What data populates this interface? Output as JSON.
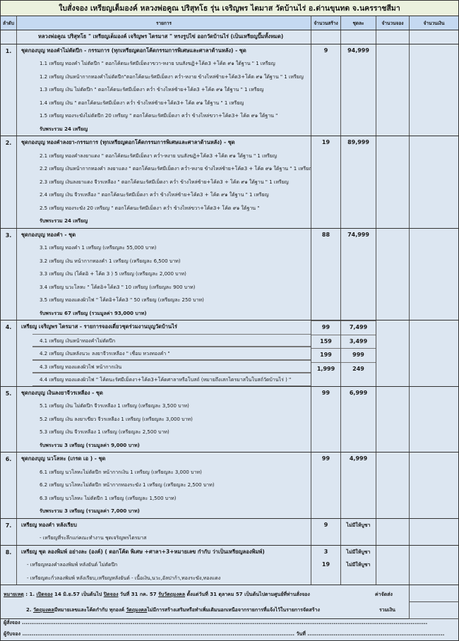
{
  "title": "ใบสั่งจอง เหรียญเต็มองค์ หลวงพ่อคูณ ปริสุทโธ รุ่น เจริญพร ไตมาส วัดบ้านไร่ อ.ด่านขุนทด จ.นครราชสีมา",
  "headers": [
    "ลำดับ",
    "รายการ",
    "จำนวนสร้าง",
    "ชุดละ",
    "จำนวนจอง",
    "จำนวนเงิน"
  ],
  "intro": "หลวงพ่อคูณ ปริสุทโธ \" เหรียญเต็มองค์ เจริญพร ไตรมาส \" ทรงรูปไข่ ออกวัดบ้านไร่ (เป็นเหรียญปั๊มทั้งหมด)",
  "sections": [
    {
      "num": "1.",
      "title": "ชุดกองบุญ ทองคำไม่ตัดปีก - กรรมการ (ทุกเหรียญตอกโค้ดกรรมการพิเศษและศาลาด้านหลัง) - ชุด",
      "qty": "9",
      "price": "94,999",
      "lines": [
        "1.1 เหรียญ ทองคำ ไม่ตัดปีก \" ตอกโค้ดนะรัศมีเม็ดงาขวา-หงาย บนสังฆฏิ+โค้ด3 +โค้ด ๙๑ ใต้ฐาน \" 1 เหรียญ",
        "1.2 เหรียญ เงินหน้ากากทองคำไม่ตัดปีก\"ตอกโค้ดนะรัศมีเม็ดงา คว่ำ-หงาย ข้างไหล่ซ้าย+โค้ด3+โค้ด ๙๑ ใต้ฐาน \" 1 เหรียญ",
        "1.3 เหรียญ เงิน ไม่ตัดปีก \" ตอกโค้ดนะรัศมีเม็ดงา คว่ำ ข้างไหล่ซ้าย+โค้ด3 +โค้ด ๙๑ ใต้ฐาน \" 1 เหรียญ",
        "1.4  เหรียญ เงิน  \" ตอกโค้ดนะรัศมีเม็ดงา คว่ำ ข้างไหล่ซ้าย+โค้ด3+ โค้ด ๙๑ ใต้ฐาน \" 1 เหรียญ",
        "1.5 เหรียญ ทองระฆังไม่ตัดปีก 20 เหรียญ  \" ตอกโค้ดนะรัศมีเม็ดงา คว่ำ ข้างไหล่ขวา+โค้ด3+ โค้ด ๙๑ ใต้ฐาน \""
      ],
      "total": "รับพระรวม 24 เหรียญ"
    },
    {
      "num": "2.",
      "title": "ชุดกองบุญ ทองคำลงยา-กรรมการ  (ทุกเหรียญตอกโค้ดกรรมการพิเศษและศาลาด้านหลัง) - ชุด",
      "qty": "19",
      "price": "89,999",
      "lines": [
        "2.1 เหรียญ ทองคำลงยาแดง \" ตอกโค้ดนะรัศมีเม็ดงา คว่ำ-หงาย บนสังฆฏิ+โค้ด3 +โค้ด ๙๑ ใต้ฐาน \" 1 เหรียญ",
        "2.2 เหรียญ เงินหน้ากากทองคำ ลงยาแดง \" ตอกโค้ดนะรัศมีเม็ดงา คว่ำ-หงาย ข้างไหล่ซ้าย+โค้ด3 + โค้ด ๙๑ ใต้ฐาน \" 1 เหรียญ",
        "2.3 เหรียญ เงินลงยาแดง จีวรเหลือง  \" ตอกโค้ดนะรัศมีเม็ดงา คว่ำ ข้างไหล่ซ้าย+โค้ด3 + โค้ด ๙๑ ใต้ฐาน \" 1 เหรียญ",
        "2.4  เหรียญ เงิน จีวรเหลือง  \" ตอกโค้ดนะรัศมีเม็ดงา คว่ำ ข้างไหล่ซ้าย+โค้ด3 + โค้ด ๙๑ ใต้ฐาน \" 1 เหรียญ",
        "2.5 เหรียญ ทองระฆัง 20 เหรียญ  \" ตอกโค้ดนะรัศมีเม็ดงา คว่ำ ข้างไหล่ขวา+โค้ด3+ โค้ด ๙๑ ใต้ฐาน \""
      ],
      "total": "รับพระรวม 24 เหรียญ"
    },
    {
      "num": "3.",
      "title": "ชุดกองบุญ ทองคำ - ชุด",
      "qty": "88",
      "price": "74,999",
      "lines": [
        "3.1 เหรียญ ทองคำ 1 เหรียญ (เหรียญละ 55,000 บาท)",
        "3.2 เหรียญ เงิน หน้ากากทองคำ 1 เหรียญ (เหรียญละ 6,500 บาท)",
        "3.3 เหรียญ เงิน (โค้ดอิ + โค้ด 3 )  5 เหรียญ (เหรียญละ 2,000 บาท)",
        "3.4 เหรียญ นวะโลหะ \" โค้ดอิ+โค้ด3 \" 10 เหรียญ (เหรียญละ 900 บาท)",
        "3.5 เหรียญ ทองแดงผิวไฟ \" โค้ดอิ+โค้ด3 \" 50 เหรียญ (เหรียญละ 250 บาท)"
      ],
      "total": "รับพระรวม 67 เหรียญ (รวมมูลค่า 93,000 บาท)"
    },
    {
      "num": "4.",
      "title": "เหรียญ เจริญพร ไตรมาส - รายการจองเดี่ยวชุดร่วมงานบุญวัดบ้านไร่",
      "qty": "",
      "price": "",
      "items": [
        {
          "text": "4.1 เหรียญ เงินหน้าทองคำไม่ตัดปีก",
          "qty": "99",
          "price": "7,499"
        },
        {
          "text": "4.2 เหรียญ  เงินหลังนวะ ลงยาจีวรเหลือง \" เชื่อม หวงทองคำ \"",
          "qty": "159",
          "price": "3,499"
        },
        {
          "text": "4.3 เหรียญ  ทองแดงผิวไฟ หน้ากากเงิน",
          "qty": "199",
          "price": "999"
        },
        {
          "text": "4.4 เหรียญ ทองแดงผิวไฟ \" โค้ดนะรัศมีเม็ดงา+โค้ด3+โค้ดศาลาหรือโบสถ์ (หมายถึงเสกไตรมาสในโบสถ์วัดบ้านไร่ ) \"",
          "qty": "1,999",
          "price": "249"
        }
      ]
    },
    {
      "num": "5.",
      "title": "ชุดกองบุญ เงินลงยาจีวรเหลือง - ชุด",
      "qty": "99",
      "price": "6,999",
      "lines": [
        "5.1 เหรียญ เงิน ไม่ตัดปีก จีวรเหลือง  1 เหรียญ  (เหรียญละ 3,500 บาท)",
        "5.2 เหรียญ เงิน  ลงยาเขียว จีวรเหลือง  1 เหรียญ (เหรียญละ 3,000 บาท)",
        "5.3 เหรียญ เงิน  จีวรเหลือง  1 เหรียญ (เหรียญละ 2,500 บาท)"
      ],
      "total": "รับพระรวม 3 เหรียญ (รวมมูลค่า 9,000 บาท)"
    },
    {
      "num": "6.",
      "title": "ชุดกองบุญ นวโลหะ (เกรด เอ ) - ชุด",
      "qty": "99",
      "price": "4,999",
      "lines": [
        "6.1 เหรียญ นวโลหะไม่ตัดปีก หน้ากากเงิน 1 เหรียญ  (เหรียญละ 3,000 บาท)",
        "6.2 เหรียญ นวโลหะไม่ตัดปีก หน้ากากทองระฆัง 1 เหรียญ  (เหรียญละ 2,500 บาท)",
        "6.3 เหรียญ นวโลหะ ไม่ตัดปีก 1 เหรียญ (เหรียญละ 1,500 บาท)"
      ],
      "total": "รับพระรวม 3 เหรียญ (รวมมูลค่า 7,000 บาท)"
    },
    {
      "num": "7.",
      "title": "เหรียญ ทองคำ หลังเรียบ",
      "qty": "9",
      "price": "ไม่มีให้บูชา",
      "lines": [
        "- เหรียญที่ระลึกแก่คณะทำงาน ชุดเจริญพรไตรมาส"
      ]
    },
    {
      "num": "8.",
      "title": "เหรียญ ชุด ลองพิมพ์ อย่างละ (องค์) ( ตอกโค้ด พิเศษ +ศาลา+3+หมายเลข กำกับ ว่าเป็นเหรียญลองพิมพ์)",
      "qty": "",
      "price": "",
      "plain_items": [
        {
          "text": "- เหรียญทองคำลองพิมพ์ หลังยันต์ ไม่ตัดปีก",
          "qty": "3",
          "price": "ไม่มีให้บูชา"
        },
        {
          "text": "- เหรียญตะกั่วลองพิมพ์ หลังเรียบ,เหรียญหลังยันต์ - เนื้อเงิน,นวะ,อัลปาก้า,ทองระฆัง,ทองแดง",
          "qty": "19",
          "price": "ไม่มีให้บูชา"
        }
      ]
    }
  ],
  "notes": {
    "label": "หมายเหตุ",
    "n1_a": "1. ",
    "n1_open": "เปิดจอง",
    "n1_b": " 14 มิ.ย.57 เป็นต้นไป ",
    "n1_close": "ปิดจอง",
    "n1_c": " วันที่ 31 กค. 57 ",
    "n1_recv": "รับวัตถุมงคล",
    "n1_d": " ตั้งแต่วันที่ 31 ตุลาคม 57 เป็นต้นไปตามศูนย์ที่ท่านสั่งจอง",
    "n2_a": "2. ",
    "n2_u1": "วัตถุมงคล",
    "n2_b": "มีหมายเลขและโค้ดกำกับ ทุกองค์ ",
    "n2_u2": "วัตถุมงคล",
    "n2_c": "ไม่มีการสร้างเสริมหรือทำเพิ่มเติมนอกเหนือจากรายการที่แจ้งไว้ในรายการจัดสร้าง",
    "shipping": "ค่าจัดส่ง",
    "total": "รวมเงิน"
  },
  "signature": {
    "orderer": "ผู้สั่งจอง",
    "receiver": "ผู้รับจอง",
    "date": "วันที่"
  }
}
